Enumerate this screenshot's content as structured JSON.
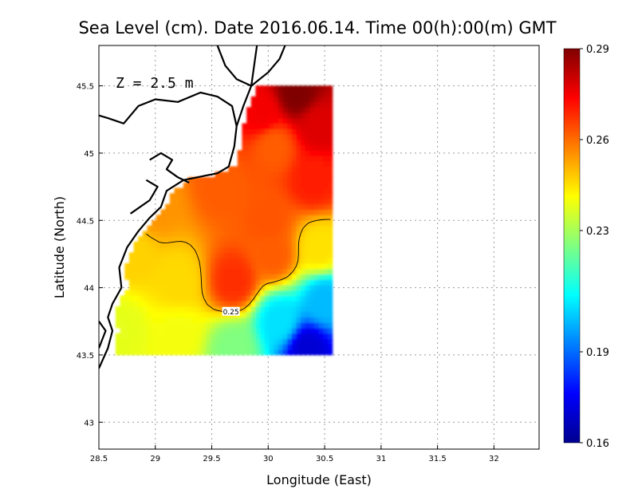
{
  "chart_data": {
    "type": "heatmap",
    "title": "Sea Level (cm). Date 2016.06.14. Time 00(h):00(m) GMT",
    "xlabel": "Longitude (East)",
    "ylabel": "Latitude (North)",
    "annotation": "Z = 2.5 m",
    "xlim": [
      28.5,
      32.4
    ],
    "ylim": [
      42.8,
      45.8
    ],
    "x_ticks": [
      {
        "value": 28.5,
        "label": "28.5"
      },
      {
        "value": 29,
        "label": "29"
      },
      {
        "value": 29.5,
        "label": "29.5"
      },
      {
        "value": 30,
        "label": "30"
      },
      {
        "value": 30.5,
        "label": "30.5"
      },
      {
        "value": 31,
        "label": "31"
      },
      {
        "value": 31.5,
        "label": "31.5"
      },
      {
        "value": 32,
        "label": "32"
      }
    ],
    "y_ticks": [
      {
        "value": 43,
        "label": "43"
      },
      {
        "value": 43.5,
        "label": "43.5"
      },
      {
        "value": 44,
        "label": "44"
      },
      {
        "value": 44.5,
        "label": "44.5"
      },
      {
        "value": 45,
        "label": "45"
      },
      {
        "value": 45.5,
        "label": "45.5"
      }
    ],
    "grid": true,
    "colorbar": {
      "min": 0.16,
      "max": 0.29,
      "ticks": [
        {
          "value": 0.16,
          "label": "0.16"
        },
        {
          "value": 0.19,
          "label": "0.19"
        },
        {
          "value": 0.23,
          "label": "0.23"
        },
        {
          "value": 0.26,
          "label": "0.26"
        },
        {
          "value": 0.29,
          "label": "0.29"
        }
      ],
      "colors": [
        "#00008f",
        "#0000ff",
        "#0080ff",
        "#00ffff",
        "#80ff80",
        "#ffff00",
        "#ff8000",
        "#ff0000",
        "#800000"
      ]
    },
    "field": {
      "description_values": "sea level anomaly estimates in cm",
      "data_extent": {
        "lon_min": 28.65,
        "lon_max": 30.55,
        "lat_min": 43.5,
        "lat_max": 45.5
      },
      "points": [
        {
          "lon": 30.25,
          "lat": 45.45,
          "value": 0.29
        },
        {
          "lon": 29.95,
          "lat": 45.3,
          "value": 0.275
        },
        {
          "lon": 30.45,
          "lat": 45.2,
          "value": 0.278
        },
        {
          "lon": 30.05,
          "lat": 45.05,
          "value": 0.262
        },
        {
          "lon": 30.4,
          "lat": 44.8,
          "value": 0.27
        },
        {
          "lon": 29.6,
          "lat": 44.75,
          "value": 0.262
        },
        {
          "lon": 30.0,
          "lat": 44.5,
          "value": 0.263
        },
        {
          "lon": 29.0,
          "lat": 44.6,
          "value": 0.255
        },
        {
          "lon": 28.8,
          "lat": 44.25,
          "value": 0.247
        },
        {
          "lon": 29.2,
          "lat": 44.05,
          "value": 0.246
        },
        {
          "lon": 29.7,
          "lat": 44.05,
          "value": 0.268
        },
        {
          "lon": 30.05,
          "lat": 44.25,
          "value": 0.262
        },
        {
          "lon": 30.45,
          "lat": 44.3,
          "value": 0.245
        },
        {
          "lon": 28.7,
          "lat": 43.7,
          "value": 0.238
        },
        {
          "lon": 29.2,
          "lat": 43.65,
          "value": 0.24
        },
        {
          "lon": 29.7,
          "lat": 43.55,
          "value": 0.225
        },
        {
          "lon": 30.1,
          "lat": 43.75,
          "value": 0.205
        },
        {
          "lon": 30.35,
          "lat": 43.55,
          "value": 0.17
        },
        {
          "lon": 30.5,
          "lat": 43.9,
          "value": 0.2
        }
      ]
    },
    "contours": [
      {
        "level": 0.25,
        "label": "0.25"
      }
    ]
  }
}
